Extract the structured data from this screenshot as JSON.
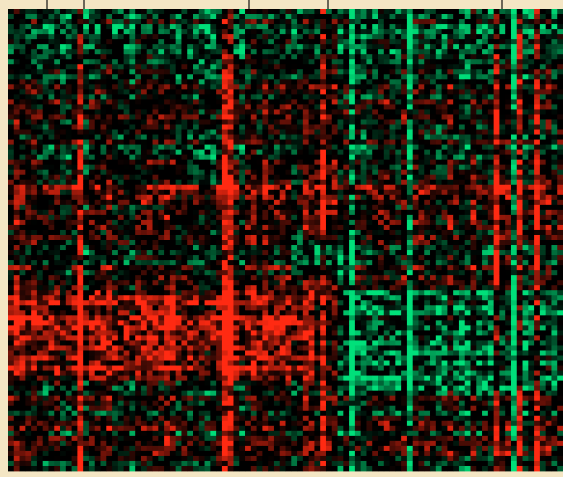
{
  "chart_data": {
    "type": "heatmap",
    "colors": {
      "background": "#f4e6c4",
      "low": "#00e07a",
      "mid": "#000000",
      "high": "#ff2a12",
      "dendrogram": "#111111"
    },
    "color_scale": "green-black-red",
    "dendrogram_branches": 5,
    "xlabel": "",
    "ylabel": "",
    "title": "",
    "legend": "none"
  }
}
